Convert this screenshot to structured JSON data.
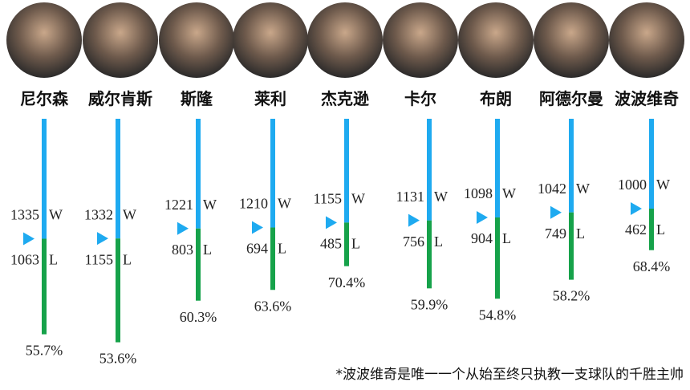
{
  "chart_data": {
    "type": "wl-bars",
    "categories": [
      "尼尔森",
      "威尔肯斯",
      "斯隆",
      "莱利",
      "杰克逊",
      "卡尔",
      "布朗",
      "阿德尔曼",
      "波波维奇"
    ],
    "series": [
      {
        "name": "W",
        "color": "#1eaaf0",
        "values": [
          1335,
          1332,
          1221,
          1210,
          1155,
          1131,
          1098,
          1042,
          1000
        ]
      },
      {
        "name": "L",
        "color": "#16a24a",
        "values": [
          1063,
          1155,
          803,
          694,
          485,
          756,
          904,
          749,
          462
        ]
      }
    ],
    "win_rate": {
      "values": [
        55.7,
        53.6,
        60.3,
        63.6,
        70.4,
        59.9,
        54.8,
        58.2,
        68.4
      ],
      "value_labels": [
        "55.7%",
        "53.6%",
        "60.3%",
        "63.6%",
        "70.4%",
        "59.9%",
        "54.8%",
        "58.2%",
        "68.4%"
      ]
    },
    "footnote": "*波波维奇是唯一一个从始至终只执教一支球队的千胜主帅"
  }
}
